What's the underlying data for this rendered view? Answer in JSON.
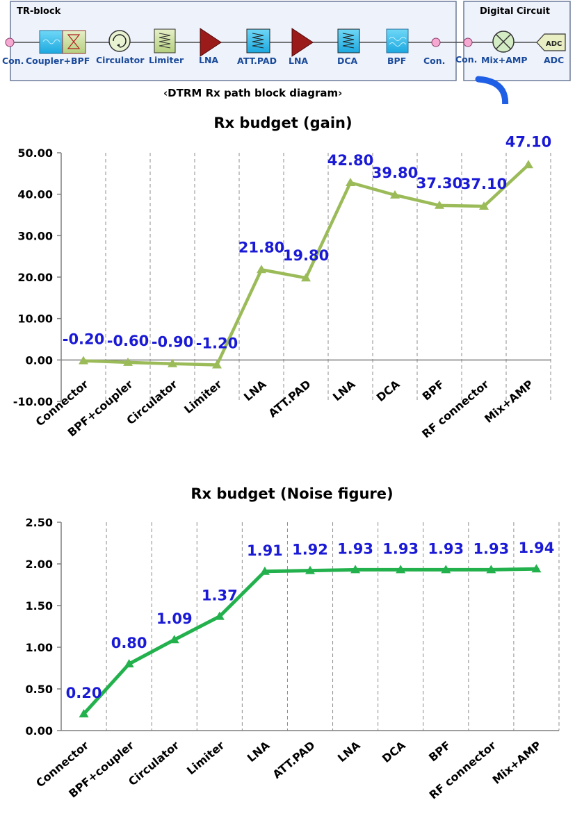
{
  "diagram": {
    "tr_block_title": "TR-block",
    "digital_title": "Digital Circuit",
    "caption": "‹DTRM Rx path block diagram›",
    "blocks": [
      {
        "label": "Con.",
        "icon": "connector-dot"
      },
      {
        "label": "Coupler+BPF",
        "icon": "coupler-bpf-icon"
      },
      {
        "label": "Circulator",
        "icon": "circulator-icon"
      },
      {
        "label": "Limiter",
        "icon": "limiter-icon"
      },
      {
        "label": "LNA",
        "icon": "amplifier-triangle-icon"
      },
      {
        "label": "ATT.PAD",
        "icon": "attenuator-icon"
      },
      {
        "label": "LNA",
        "icon": "amplifier-triangle-icon"
      },
      {
        "label": "DCA",
        "icon": "attenuator-icon"
      },
      {
        "label": "BPF",
        "icon": "bpf-icon"
      },
      {
        "label": "Con.",
        "icon": "connector-dot"
      }
    ],
    "digital_blocks": [
      {
        "label": "Con.",
        "icon": "connector-dot"
      },
      {
        "label": "Mix+AMP",
        "icon": "mixer-icon"
      },
      {
        "label": "ADC",
        "icon": "adc-icon",
        "inner_text": "ADC"
      }
    ],
    "colors": {
      "box_bg": "#eef2fb",
      "block_blue": "#3fc3ec",
      "lna_red": "#9b1b1b",
      "arrow_blue": "#1f5fe6"
    }
  },
  "chart_data": [
    {
      "type": "line",
      "title": "Rx budget (gain)",
      "categories": [
        "Connector",
        "BPF+coupler",
        "Circulator",
        "Limiter",
        "LNA",
        "ATT.PAD",
        "LNA",
        "DCA",
        "BPF",
        "RF connector",
        "Mix+AMP"
      ],
      "series": [
        {
          "values": [
            -0.2,
            -0.6,
            -0.9,
            -1.2,
            21.8,
            19.8,
            42.8,
            39.8,
            37.3,
            37.1,
            47.1
          ]
        }
      ],
      "data_labels": [
        "-0.20",
        "-0.60",
        "-0.90",
        "-1.20",
        "21.80",
        "19.80",
        "42.80",
        "39.80",
        "37.30",
        "37.10",
        "47.10"
      ],
      "yticks": [
        "50.00",
        "40.00",
        "30.00",
        "20.00",
        "10.00",
        "0.00",
        "-10.00"
      ],
      "ylim": [
        -10,
        50
      ],
      "grid": "vertical dashed",
      "line_color": "#9bbb59",
      "label_color": "#1a1ad6"
    },
    {
      "type": "line",
      "title": "Rx budget (Noise figure)",
      "categories": [
        "Connector",
        "BPF+coupler",
        "Circulator",
        "Limiter",
        "LNA",
        "ATT.PAD",
        "LNA",
        "DCA",
        "BPF",
        "RF connector",
        "Mix+AMP"
      ],
      "series": [
        {
          "values": [
            0.2,
            0.8,
            1.09,
            1.37,
            1.91,
            1.92,
            1.93,
            1.93,
            1.93,
            1.93,
            1.94
          ]
        }
      ],
      "data_labels": [
        "0.20",
        "0.80",
        "1.09",
        "1.37",
        "1.91",
        "1.92",
        "1.93",
        "1.93",
        "1.93",
        "1.93",
        "1.94"
      ],
      "yticks": [
        "2.50",
        "2.00",
        "1.50",
        "1.00",
        "0.50",
        "0.00"
      ],
      "ylim": [
        0,
        2.5
      ],
      "grid": "vertical dashed",
      "line_color": "#22b14c",
      "label_color": "#1a1ad6"
    }
  ]
}
